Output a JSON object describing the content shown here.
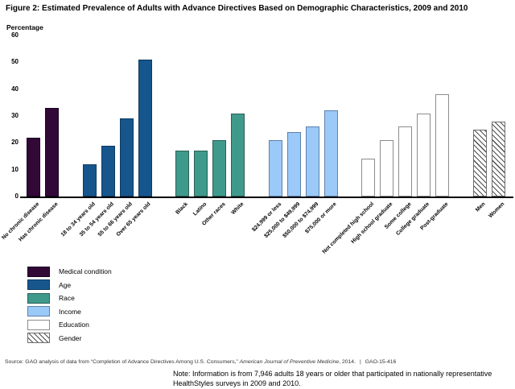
{
  "title": "Figure 2: Estimated Prevalence of Adults with Advance Directives Based on Demographic Characteristics, 2009 and 2010",
  "chart_data": {
    "type": "bar",
    "title": "Figure 2: Estimated Prevalence of Adults with Advance Directives Based on Demographic Characteristics, 2009 and 2010",
    "xlabel": "",
    "ylabel": "Percentage",
    "ylim": [
      0,
      60
    ],
    "yticks": [
      0,
      10,
      20,
      30,
      40,
      50,
      60
    ],
    "grid": false,
    "legend_position": "bottom-left",
    "groups": [
      {
        "name": "Medical condition",
        "fill": "#320837",
        "border": "#180420",
        "pattern": "solid",
        "bars": [
          {
            "label": "No chronic disease",
            "value": 22
          },
          {
            "label": "Has chronic disease",
            "value": 33
          }
        ]
      },
      {
        "name": "Age",
        "fill": "#16568d",
        "border": "#0c3a61",
        "pattern": "solid",
        "bars": [
          {
            "label": "18 to 34 years old",
            "value": 12
          },
          {
            "label": "35 to 54 years old",
            "value": 19
          },
          {
            "label": "55 to 66 years old",
            "value": 29
          },
          {
            "label": "Over 65 years old",
            "value": 51
          }
        ]
      },
      {
        "name": "Race",
        "fill": "#3f9a8c",
        "border": "#2c5f56",
        "pattern": "solid",
        "bars": [
          {
            "label": "Black",
            "value": 17
          },
          {
            "label": "Latino",
            "value": 17
          },
          {
            "label": "Other races",
            "value": 21
          },
          {
            "label": "White",
            "value": 31
          }
        ]
      },
      {
        "name": "Income",
        "fill": "#9bc9f8",
        "border": "#5d81aa",
        "pattern": "solid",
        "bars": [
          {
            "label": "$24,999 or less",
            "value": 21
          },
          {
            "label": "$25,000 to $49,999",
            "value": 24
          },
          {
            "label": "$50,000 to $74,999",
            "value": 26
          },
          {
            "label": "$75,000 or more",
            "value": 32
          }
        ]
      },
      {
        "name": "Education",
        "fill": "#ffffff",
        "border": "#8c8c8c",
        "pattern": "solid",
        "bars": [
          {
            "label": "Not completed high school",
            "value": 14
          },
          {
            "label": "High school graduate",
            "value": 21
          },
          {
            "label": "Some college",
            "value": 26
          },
          {
            "label": "College graduate",
            "value": 31
          },
          {
            "label": "Post-graduate",
            "value": 38
          }
        ]
      },
      {
        "name": "Gender",
        "fill": "#ffffff",
        "border": "#6e6e6e",
        "pattern": "hatch",
        "hatch_color": "#4d4d4d",
        "bars": [
          {
            "label": "Men",
            "value": 25
          },
          {
            "label": "Women",
            "value": 28
          }
        ]
      }
    ]
  },
  "source": {
    "prefix": "Source: GAO analysis of data from “Completion of Advance Directives Among U.S. Consumers,” ",
    "journal": "American Journal of Preventive Medicine",
    "suffix": ", 2014.",
    "divider": "|",
    "report_id": "GAO-15-416"
  },
  "note": "Note: Information is from 7,946 adults 18 years or older that participated in nationally representative HealthStyles surveys in 2009 and 2010."
}
